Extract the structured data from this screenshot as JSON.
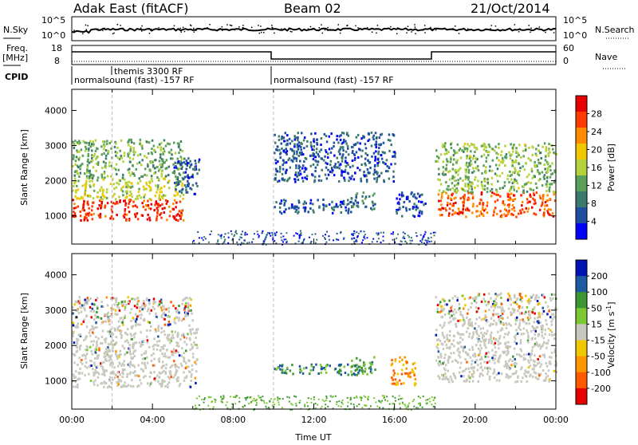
{
  "header": {
    "station": "Adak East (fitACF)",
    "beam": "Beam 02",
    "date": "21/Oct/2014"
  },
  "noise_panel": {
    "left_label": "N.Sky",
    "right_label": "N.Search",
    "left_ticks": [
      "10^5",
      "10^0"
    ],
    "right_ticks": [
      "10^5",
      "10^0"
    ]
  },
  "freq_panel": {
    "left_label_1": "Freq.",
    "left_label_2": "[MHz]",
    "right_label": "Nave",
    "left_ticks": [
      "18",
      "8"
    ],
    "right_ticks": [
      "60",
      "0"
    ]
  },
  "cpid_panel": {
    "label": "CPID",
    "entries": [
      {
        "text": "normalsound (fast) -157 RF",
        "start_hour": 0
      },
      {
        "text": "themis 3300 RF",
        "start_hour": 2
      },
      {
        "text": "normalsound (fast) -157 RF",
        "start_hour": 10
      }
    ]
  },
  "colors": {
    "power": [
      "#0000ff",
      "#1e4fa0",
      "#3c7a6e",
      "#5aa05a",
      "#b4d23c",
      "#f0c800",
      "#ff8c00",
      "#ff3c00",
      "#e60000"
    ],
    "velocity": [
      "#e60000",
      "#ff5a00",
      "#ff9600",
      "#f0c800",
      "#c8c8be",
      "#7cc832",
      "#3c9632",
      "#1e5aa0",
      "#0014b4"
    ]
  },
  "chart_data": [
    {
      "type": "heatmap",
      "parameter": "power",
      "ylabel": "Slant Range [km]",
      "y_ticks": [
        "1000",
        "2000",
        "3000",
        "4000"
      ],
      "ylim": [
        200,
        4600
      ],
      "colorbar_label": "Power [dB]",
      "colorbar_ticks": [
        "4",
        "8",
        "12",
        "16",
        "20",
        "24",
        "28"
      ],
      "colorbar_range": [
        0,
        32
      ],
      "x_ticks": [
        "00:00",
        "04:00",
        "08:00",
        "12:00",
        "16:00",
        "20:00",
        "00:00"
      ],
      "xlim_hours": [
        0,
        24
      ],
      "regions": [
        {
          "hours": [
            0.0,
            5.5
          ],
          "range_km": [
            900,
            1500
          ],
          "dB": 28
        },
        {
          "hours": [
            0.0,
            5.5
          ],
          "range_km": [
            1500,
            2100
          ],
          "dB": 17
        },
        {
          "hours": [
            0.0,
            5.5
          ],
          "range_km": [
            2100,
            3200
          ],
          "dB": 13
        },
        {
          "hours": [
            5.0,
            6.3
          ],
          "range_km": [
            1600,
            2700
          ],
          "dB": 6
        },
        {
          "hours": [
            10.0,
            16.0
          ],
          "range_km": [
            2000,
            3400
          ],
          "dB": 6
        },
        {
          "hours": [
            10.0,
            14.2
          ],
          "range_km": [
            1100,
            1500
          ],
          "dB": 6
        },
        {
          "hours": [
            13.8,
            15.0
          ],
          "range_km": [
            1200,
            1700
          ],
          "dB": 9
        },
        {
          "hours": [
            16.0,
            17.5
          ],
          "range_km": [
            1000,
            1700
          ],
          "dB": 5
        },
        {
          "hours": [
            18.0,
            24.0
          ],
          "range_km": [
            1000,
            1700
          ],
          "dB": 26
        },
        {
          "hours": [
            18.0,
            24.0
          ],
          "range_km": [
            1700,
            3100
          ],
          "dB": 14
        }
      ]
    },
    {
      "type": "heatmap",
      "parameter": "velocity",
      "xlabel": "Time UT",
      "ylabel": "Slant Range [km]",
      "y_ticks": [
        "1000",
        "2000",
        "3000",
        "4000"
      ],
      "ylim": [
        200,
        4600
      ],
      "colorbar_label": "Velocity [m s",
      "colorbar_label_sup": "-1",
      "colorbar_label_end": "]",
      "colorbar_ticks": [
        "200",
        "100",
        "50",
        "15",
        "-15",
        "-50",
        "-100",
        "-200"
      ],
      "x_ticks": [
        "00:00",
        "04:00",
        "08:00",
        "12:00",
        "16:00",
        "20:00",
        "00:00"
      ],
      "xlim_hours": [
        0,
        24
      ],
      "regions": [
        {
          "hours": [
            0.0,
            6.2
          ],
          "range_km": [
            850,
            2600
          ],
          "class": "ground"
        },
        {
          "hours": [
            0.0,
            6.0
          ],
          "range_km": [
            2600,
            3400
          ],
          "class": "mixed"
        },
        {
          "hours": [
            10.0,
            14.5
          ],
          "range_km": [
            1200,
            1500
          ],
          "class": "positive"
        },
        {
          "hours": [
            13.8,
            15.0
          ],
          "range_km": [
            1200,
            1700
          ],
          "class": "positive"
        },
        {
          "hours": [
            15.8,
            17.0
          ],
          "range_km": [
            900,
            1700
          ],
          "class": "negative"
        },
        {
          "hours": [
            18.0,
            24.0
          ],
          "range_km": [
            1000,
            2700
          ],
          "class": "ground"
        },
        {
          "hours": [
            18.0,
            24.0
          ],
          "range_km": [
            2700,
            3500
          ],
          "class": "mixed"
        }
      ]
    }
  ]
}
